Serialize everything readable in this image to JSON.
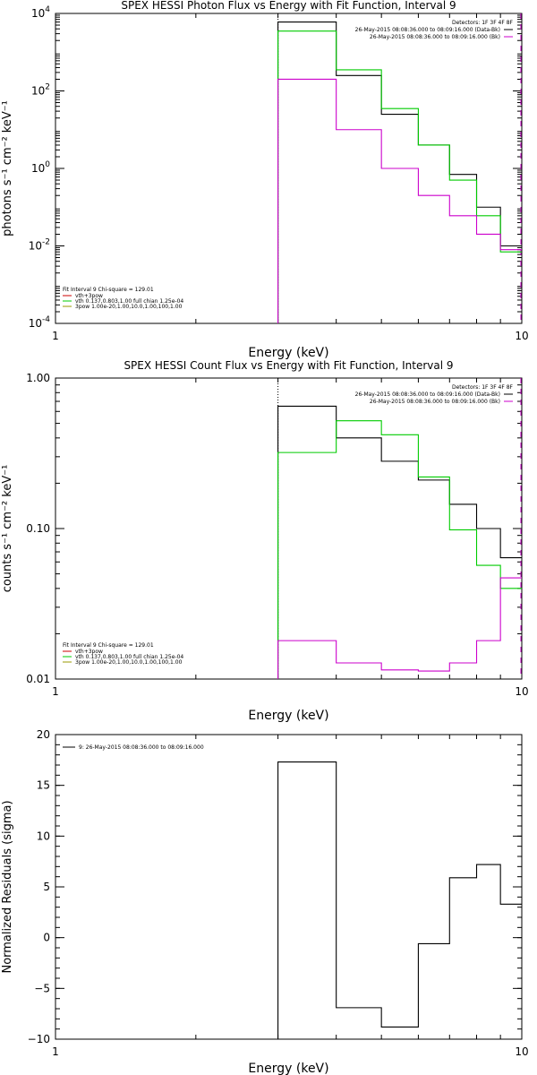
{
  "chart_data": [
    {
      "type": "line",
      "title": "SPEX HESSI Photon Flux vs Energy with Fit Function, Interval 9",
      "xlabel": "Energy (keV)",
      "ylabel": "photons s⁻¹ cm⁻² keV⁻¹",
      "xscale": "log",
      "yscale": "log",
      "xlim": [
        1,
        10
      ],
      "ylim": [
        0.0001,
        10000
      ],
      "x_ticks": [
        {
          "v": 1,
          "label": "1"
        },
        {
          "v": 10,
          "label": "10"
        }
      ],
      "y_ticks": [
        {
          "v": 10000,
          "base": "10",
          "exp": "4"
        },
        {
          "v": 100,
          "base": "10",
          "exp": "2"
        },
        {
          "v": 1,
          "base": "10",
          "exp": "0"
        },
        {
          "v": 0.01,
          "base": "10",
          "exp": "-2"
        },
        {
          "v": 0.0001,
          "base": "10",
          "exp": "-4"
        }
      ],
      "vline": 3.0,
      "legend_tr": {
        "header": "Detectors: 1F 3F 4F 8F",
        "items": [
          {
            "text": "26-May-2015 08:08:36.000 to 08:09:16.000 (Data-Bk)",
            "color": "#000000"
          },
          {
            "text": "26-May-2015 08:08:36.000 to 08:09:16.000 (Bk)",
            "color": "#cc00cc"
          }
        ]
      },
      "legend_bl": {
        "header": "Fit Interval  9    Chi-square = 129.01",
        "items": [
          {
            "text": "vth+3pow",
            "color": "#cc0000"
          },
          {
            "text": "vth 0.137,0.803,1.00  full chian 1.25e-04",
            "color": "#00cc00"
          },
          {
            "text": "3pow 1.00e-20,1.00,10.0,1.00,100,1.00",
            "color": "#999900"
          }
        ]
      },
      "series": [
        {
          "color": "#000000",
          "edges": [
            3,
            3.5,
            4,
            4.5,
            5,
            5.5,
            6,
            6.5,
            7,
            7.5,
            8,
            8.5,
            9,
            9.5,
            10
          ],
          "values": [
            6000,
            6000,
            250,
            250,
            25,
            25,
            4,
            4,
            0.7,
            0.7,
            0.1,
            0.1,
            0.01,
            0.01
          ]
        },
        {
          "color": "#00cc00",
          "edges": [
            3,
            3.5,
            4,
            4.5,
            5,
            5.5,
            6,
            6.5,
            7,
            7.5,
            8,
            8.5,
            9,
            9.5,
            10
          ],
          "values": [
            3500,
            3500,
            350,
            350,
            35,
            35,
            4,
            4,
            0.5,
            0.5,
            0.06,
            0.06,
            0.007,
            0.007
          ]
        },
        {
          "color": "#cc00cc",
          "edges": [
            3,
            3.5,
            4,
            4.5,
            5,
            5.5,
            6,
            6.5,
            7,
            7.5,
            8,
            8.5,
            9,
            9.5,
            10
          ],
          "values": [
            200,
            200,
            10,
            10,
            1,
            1,
            0.2,
            0.2,
            0.06,
            0.06,
            0.02,
            0.02,
            0.008,
            0.008
          ]
        }
      ]
    },
    {
      "type": "line",
      "title": "SPEX HESSI Count Flux vs Energy with Fit Function, Interval 9",
      "xlabel": "Energy (keV)",
      "ylabel": "counts s⁻¹ cm⁻² keV⁻¹",
      "xscale": "log",
      "yscale": "log",
      "xlim": [
        1,
        10
      ],
      "ylim": [
        0.01,
        1.0
      ],
      "x_ticks": [
        {
          "v": 1,
          "label": "1"
        },
        {
          "v": 10,
          "label": "10"
        }
      ],
      "y_ticks": [
        {
          "v": 1.0,
          "label": "1.00"
        },
        {
          "v": 0.1,
          "label": "0.10"
        },
        {
          "v": 0.01,
          "label": "0.01"
        }
      ],
      "vline": 3.0,
      "legend_tr": {
        "header": "Detectors: 1F 3F 4F 8F",
        "items": [
          {
            "text": "26-May-2015 08:08:36.000 to 08:09:16.000 (Data-Bk)",
            "color": "#000000"
          },
          {
            "text": "26-May-2015 08:08:36.000 to 08:09:16.000 (Bk)",
            "color": "#cc00cc"
          }
        ]
      },
      "legend_bl": {
        "header": "Fit Interval  9    Chi-square = 129.01",
        "items": [
          {
            "text": "vth+3pow",
            "color": "#cc0000"
          },
          {
            "text": "vth 0.137,0.803,1.00  full chian 1.25e-04",
            "color": "#00cc00"
          },
          {
            "text": "3pow 1.00e-20,1.00,10.0,1.00,100,1.00",
            "color": "#999900"
          }
        ]
      },
      "series": [
        {
          "color": "#000000",
          "edges": [
            3,
            3.5,
            4,
            4.5,
            5,
            5.5,
            6,
            6.5,
            7,
            7.5,
            8,
            8.5,
            9,
            9.5,
            10
          ],
          "values": [
            0.65,
            0.65,
            0.4,
            0.4,
            0.28,
            0.28,
            0.21,
            0.21,
            0.145,
            0.145,
            0.1,
            0.1,
            0.064,
            0.064
          ]
        },
        {
          "color": "#00cc00",
          "edges": [
            3,
            3.5,
            4,
            4.5,
            5,
            5.5,
            6,
            6.5,
            7,
            7.5,
            8,
            8.5,
            9,
            9.5,
            10
          ],
          "values": [
            0.32,
            0.32,
            0.52,
            0.52,
            0.42,
            0.42,
            0.22,
            0.22,
            0.098,
            0.098,
            0.057,
            0.057,
            0.04,
            0.04
          ]
        },
        {
          "color": "#cc00cc",
          "edges": [
            3,
            3.5,
            4,
            4.5,
            5,
            5.5,
            6,
            6.5,
            7,
            7.5,
            8,
            8.5,
            9,
            9.5,
            10
          ],
          "values": [
            0.018,
            0.018,
            0.0128,
            0.0128,
            0.0115,
            0.0115,
            0.0113,
            0.0113,
            0.0128,
            0.0128,
            0.018,
            0.018,
            0.047,
            0.047
          ]
        }
      ]
    },
    {
      "type": "line",
      "title": "",
      "xlabel": "Energy (keV)",
      "ylabel": "Normalized Residuals (sigma)",
      "xscale": "log",
      "yscale": "linear",
      "xlim": [
        1,
        10
      ],
      "ylim": [
        -10,
        20
      ],
      "x_ticks": [
        {
          "v": 1,
          "label": "1"
        },
        {
          "v": 10,
          "label": "10"
        }
      ],
      "y_ticks": [
        {
          "v": 20,
          "label": "20"
        },
        {
          "v": 15,
          "label": "15"
        },
        {
          "v": 10,
          "label": "10"
        },
        {
          "v": 5,
          "label": "5"
        },
        {
          "v": 0,
          "label": "0"
        },
        {
          "v": -5,
          "label": "−5"
        },
        {
          "v": -10,
          "label": "−10"
        }
      ],
      "legend_tl": {
        "items": [
          {
            "text": "9: 26-May-2015 08:08:36.000 to 08:09:16.000",
            "color": "#000000"
          }
        ]
      },
      "series": [
        {
          "color": "#000000",
          "edges": [
            3,
            4,
            5,
            6,
            7,
            8,
            9,
            10
          ],
          "values": [
            17.3,
            -6.9,
            -8.8,
            -0.6,
            5.9,
            7.2,
            3.3
          ],
          "close_left": true
        }
      ]
    }
  ]
}
